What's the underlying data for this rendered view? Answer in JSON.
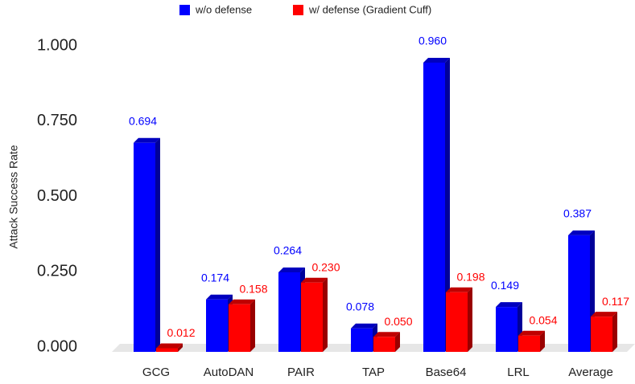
{
  "chart_data": {
    "type": "bar",
    "y_label": "Attack Success Rate",
    "categories": [
      "GCG",
      "AutoDAN",
      "PAIR",
      "TAP",
      "Base64",
      "LRL",
      "Average"
    ],
    "series": [
      {
        "name": "w/o defense",
        "color": "#0000ff",
        "values": [
          0.694,
          0.174,
          0.264,
          0.078,
          0.96,
          0.149,
          0.387
        ],
        "value_labels": [
          "0.694",
          "0.174",
          "0.264",
          "0.078",
          "0.960",
          "0.149",
          "0.387"
        ]
      },
      {
        "name": "w/ defense (Gradient Cuff)",
        "color": "#ff0000",
        "values": [
          0.012,
          0.158,
          0.23,
          0.05,
          0.198,
          0.054,
          0.117
        ],
        "value_labels": [
          "0.012",
          "0.158",
          "0.230",
          "0.050",
          "0.198",
          "0.054",
          "0.117"
        ]
      }
    ],
    "ylim": [
      0,
      1
    ],
    "yticks": [
      {
        "value": 0,
        "label": "0.000"
      },
      {
        "value": 0.25,
        "label": "0.250"
      },
      {
        "value": 0.5,
        "label": "0.500"
      },
      {
        "value": 0.75,
        "label": "0.750"
      },
      {
        "value": 1,
        "label": "1.000"
      }
    ],
    "grid": false,
    "legend": "top"
  }
}
